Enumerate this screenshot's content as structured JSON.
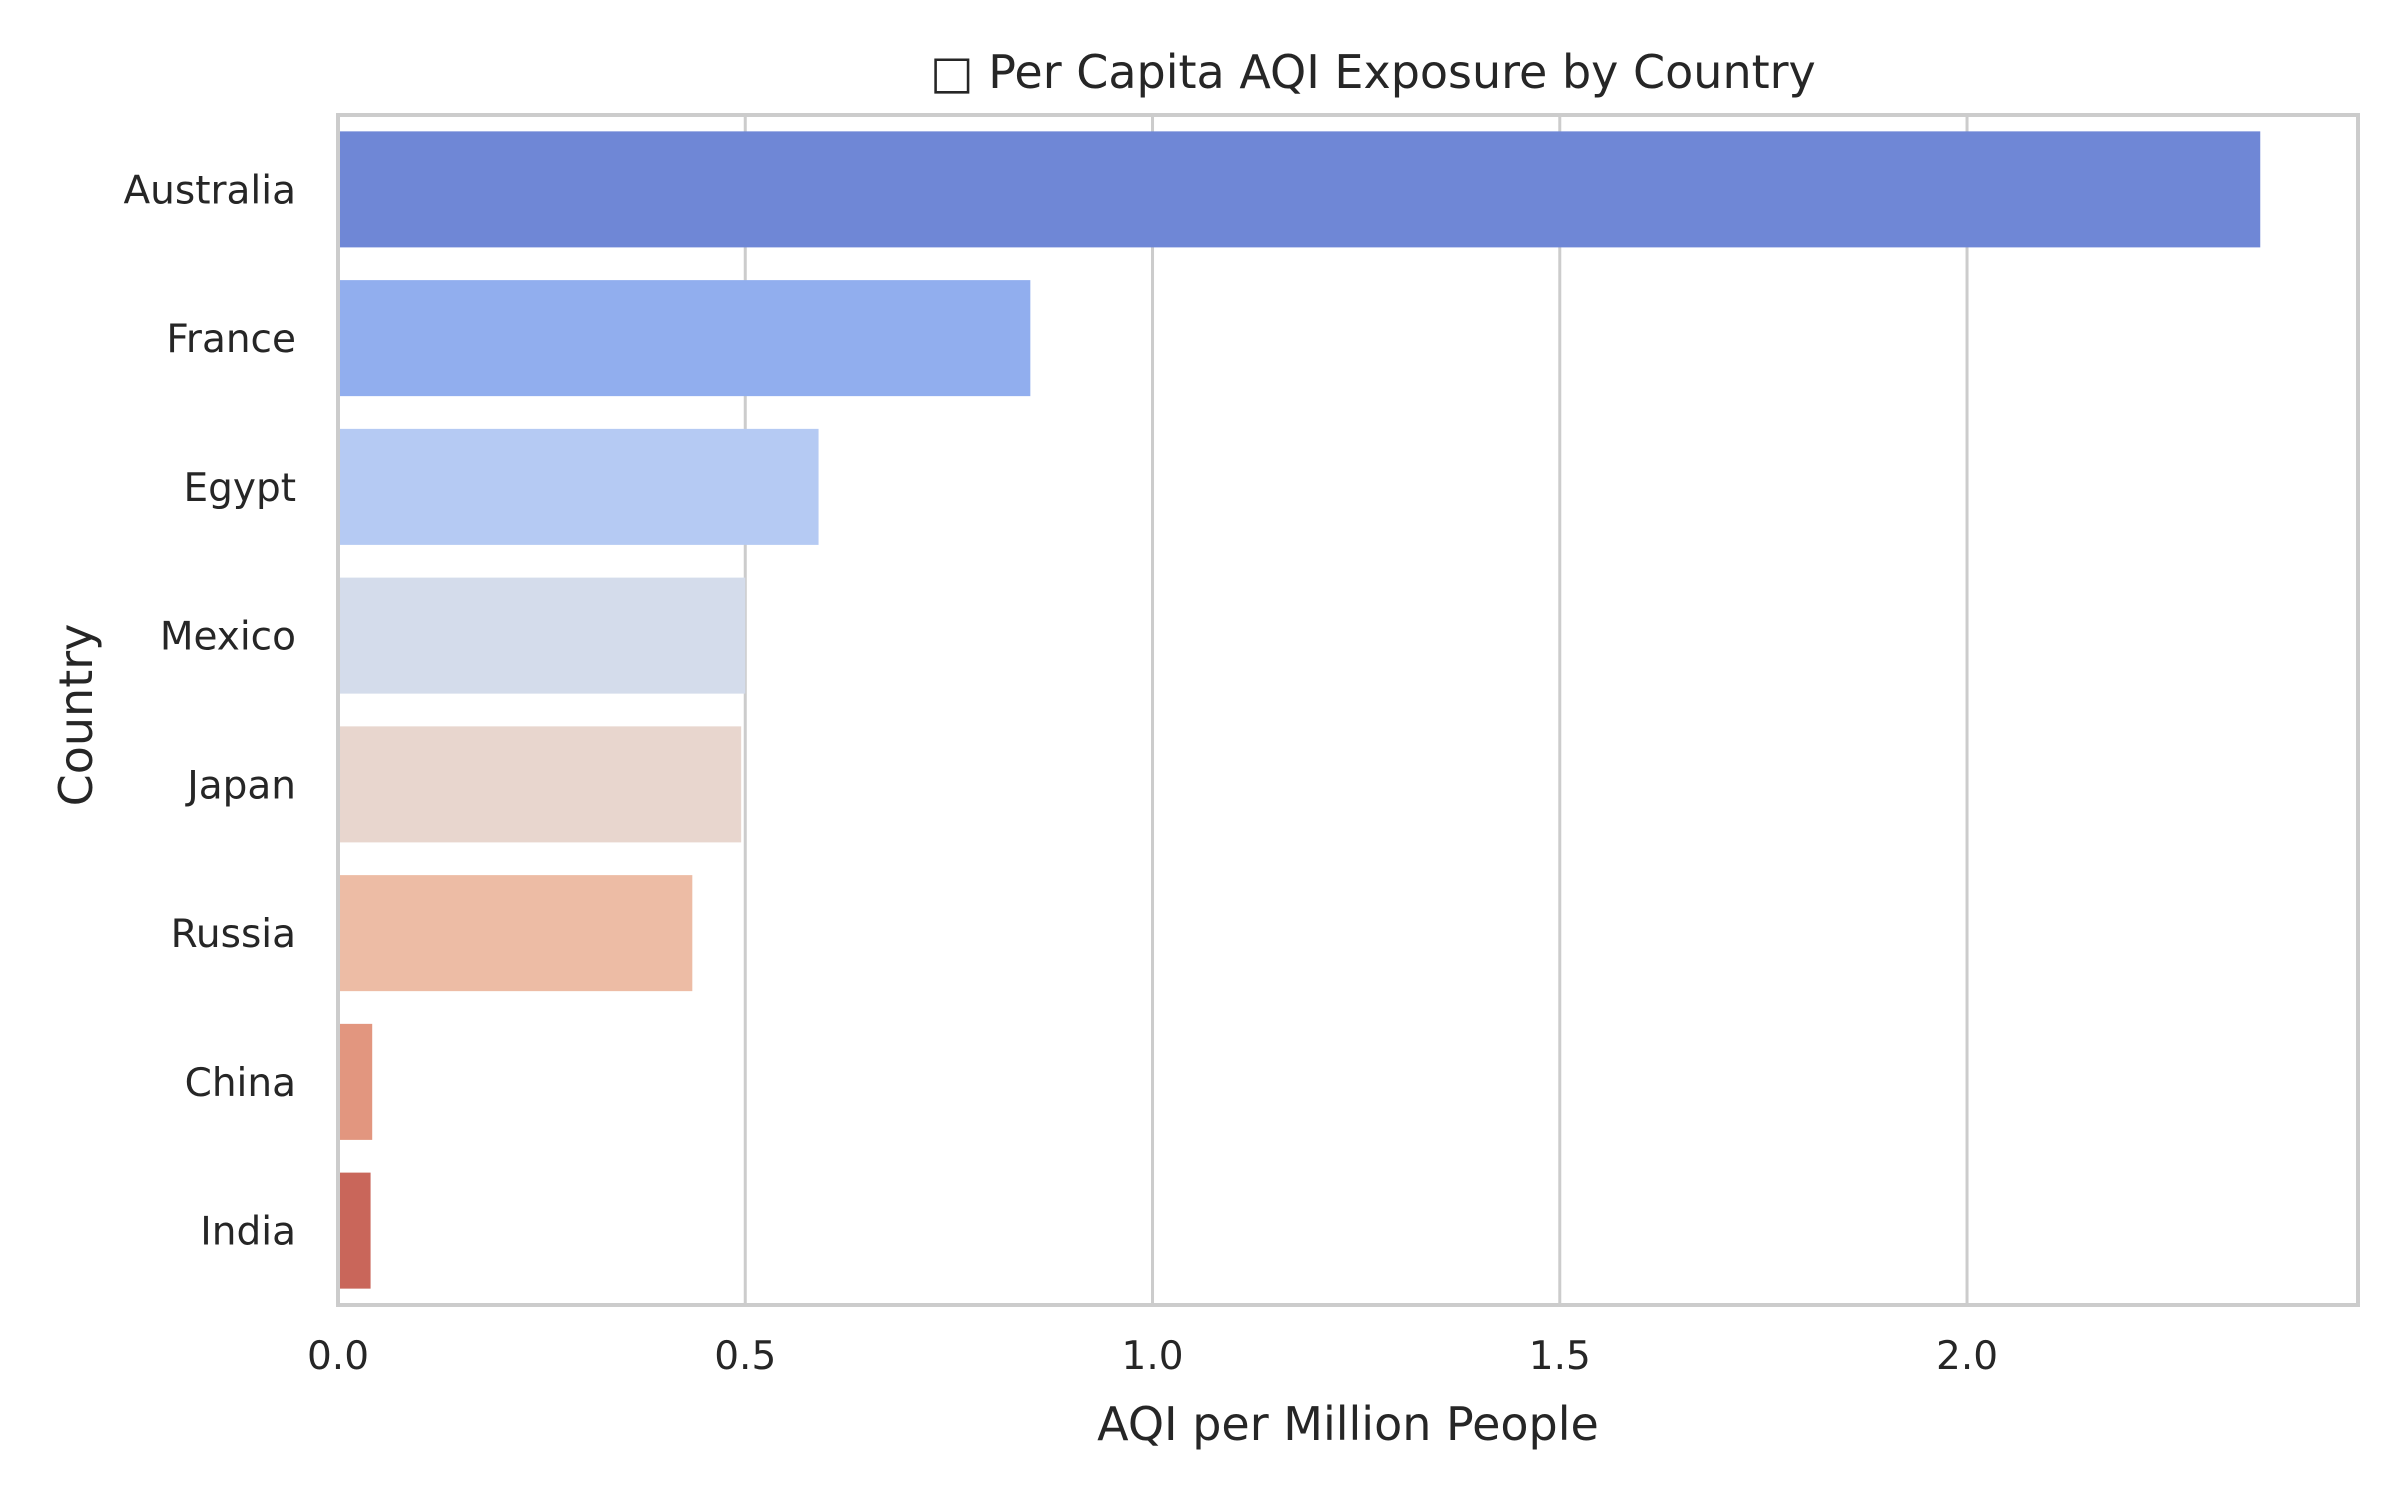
{
  "chart_data": {
    "type": "bar",
    "orientation": "horizontal",
    "title": "□ Per Capita AQI Exposure by Country",
    "xlabel": "AQI per Million People",
    "ylabel": "Country",
    "categories": [
      "Australia",
      "France",
      "Egypt",
      "Mexico",
      "Japan",
      "Russia",
      "China",
      "India"
    ],
    "values": [
      2.36,
      0.85,
      0.59,
      0.5,
      0.495,
      0.435,
      0.042,
      0.04
    ],
    "colors": [
      "#6f87d6",
      "#91aeee",
      "#b5caf3",
      "#d4dceb",
      "#e8d6ce",
      "#edbca5",
      "#e2967f",
      "#c9665a"
    ],
    "xlim": [
      0,
      2.48
    ],
    "xticks": [
      0.0,
      0.5,
      1.0,
      1.5,
      2.0
    ],
    "xtick_labels": [
      "0.0",
      "0.5",
      "1.0",
      "1.5",
      "2.0"
    ],
    "grid": "vertical",
    "legend": "none"
  },
  "style": {
    "grid_color": "#cccccc",
    "frame_color": "#cccccc",
    "text_color": "#262626",
    "background": "#ffffff"
  }
}
